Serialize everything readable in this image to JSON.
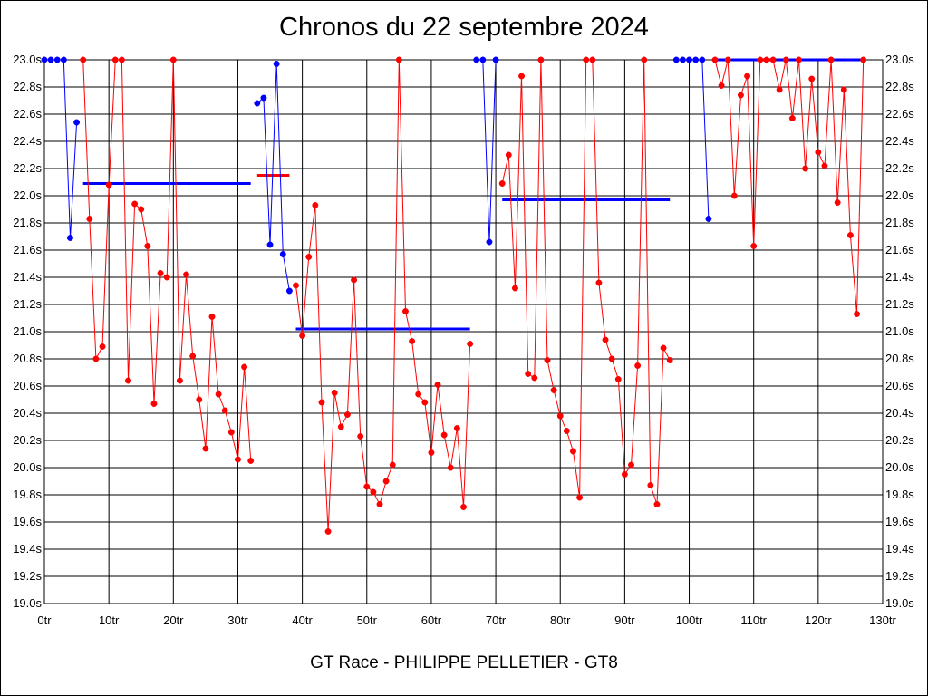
{
  "chart_data": {
    "type": "line",
    "title": "Chronos du 22 septembre 2024",
    "footer": "GT Race - PHILIPPE PELLETIER - GT8",
    "xlim": [
      0,
      130
    ],
    "ylim": [
      19.0,
      23.0
    ],
    "x_ticks": [
      0,
      10,
      20,
      30,
      40,
      50,
      60,
      70,
      80,
      90,
      100,
      110,
      120,
      130
    ],
    "x_tick_labels": [
      "0tr",
      "10tr",
      "20tr",
      "30tr",
      "40tr",
      "50tr",
      "60tr",
      "70tr",
      "80tr",
      "90tr",
      "100tr",
      "110tr",
      "120tr",
      "130tr"
    ],
    "y_ticks": [
      19.0,
      19.2,
      19.4,
      19.6,
      19.8,
      20.0,
      20.2,
      20.4,
      20.6,
      20.8,
      21.0,
      21.2,
      21.4,
      21.6,
      21.8,
      22.0,
      22.2,
      22.4,
      22.6,
      22.8,
      23.0
    ],
    "y_tick_labels": [
      "19.0s",
      "19.2s",
      "19.4s",
      "19.6s",
      "19.8s",
      "20.0s",
      "20.2s",
      "20.4s",
      "20.6s",
      "20.8s",
      "21.0s",
      "21.2s",
      "21.4s",
      "21.6s",
      "21.8s",
      "22.0s",
      "22.2s",
      "22.4s",
      "22.6s",
      "22.8s",
      "23.0s"
    ],
    "grid": true,
    "colors": {
      "blue": "#0000ff",
      "red": "#ff0000"
    },
    "segments": [
      {
        "color": "blue",
        "points": [
          [
            0,
            23.0
          ],
          [
            1,
            23.0
          ],
          [
            2,
            23.0
          ],
          [
            3,
            23.0
          ],
          [
            4,
            21.69
          ],
          [
            5,
            22.54
          ]
        ]
      },
      {
        "color": "red",
        "points": [
          [
            6,
            23.0
          ],
          [
            7,
            21.83
          ],
          [
            8,
            20.8
          ],
          [
            9,
            20.89
          ],
          [
            10,
            22.08
          ],
          [
            11,
            23.0
          ],
          [
            12,
            23.0
          ],
          [
            13,
            20.64
          ],
          [
            14,
            21.94
          ],
          [
            15,
            21.9
          ],
          [
            16,
            21.63
          ],
          [
            17,
            20.47
          ],
          [
            18,
            21.43
          ],
          [
            19,
            21.4
          ],
          [
            20,
            23.0
          ],
          [
            21,
            20.64
          ],
          [
            22,
            21.42
          ],
          [
            23,
            20.82
          ],
          [
            24,
            20.5
          ],
          [
            25,
            20.14
          ],
          [
            26,
            21.11
          ],
          [
            27,
            20.54
          ],
          [
            28,
            20.42
          ],
          [
            29,
            20.26
          ],
          [
            30,
            20.06
          ],
          [
            31,
            20.74
          ],
          [
            32,
            20.05
          ]
        ]
      },
      {
        "color": "blue",
        "points": [
          [
            33,
            22.68
          ],
          [
            34,
            22.72
          ],
          [
            35,
            21.64
          ],
          [
            36,
            22.97
          ],
          [
            37,
            21.57
          ],
          [
            38,
            21.3
          ]
        ]
      },
      {
        "color": "red",
        "points": [
          [
            39,
            21.34
          ],
          [
            40,
            20.97
          ],
          [
            41,
            21.55
          ],
          [
            42,
            21.93
          ],
          [
            43,
            20.48
          ],
          [
            44,
            19.53
          ],
          [
            45,
            20.55
          ],
          [
            46,
            20.3
          ],
          [
            47,
            20.39
          ],
          [
            48,
            21.38
          ],
          [
            49,
            20.23
          ],
          [
            50,
            19.86
          ],
          [
            51,
            19.82
          ],
          [
            52,
            19.73
          ],
          [
            53,
            19.9
          ],
          [
            54,
            20.02
          ],
          [
            55,
            23.0
          ],
          [
            56,
            21.15
          ],
          [
            57,
            20.93
          ],
          [
            58,
            20.54
          ],
          [
            59,
            20.48
          ],
          [
            60,
            20.11
          ],
          [
            61,
            20.61
          ],
          [
            62,
            20.24
          ],
          [
            63,
            20.0
          ],
          [
            64,
            20.29
          ],
          [
            65,
            19.71
          ],
          [
            66,
            20.91
          ]
        ]
      },
      {
        "color": "blue",
        "points": [
          [
            67,
            23.0
          ],
          [
            68,
            23.0
          ],
          [
            69,
            21.66
          ],
          [
            70,
            23.0
          ]
        ]
      },
      {
        "color": "red",
        "points": [
          [
            71,
            22.09
          ],
          [
            72,
            22.3
          ],
          [
            73,
            21.32
          ],
          [
            74,
            22.88
          ],
          [
            75,
            20.69
          ],
          [
            76,
            20.66
          ],
          [
            77,
            23.0
          ],
          [
            78,
            20.79
          ],
          [
            79,
            20.57
          ],
          [
            80,
            20.38
          ],
          [
            81,
            20.27
          ],
          [
            82,
            20.12
          ],
          [
            83,
            19.78
          ],
          [
            84,
            23.0
          ],
          [
            85,
            23.0
          ],
          [
            86,
            21.36
          ],
          [
            87,
            20.94
          ],
          [
            88,
            20.8
          ],
          [
            89,
            20.65
          ],
          [
            90,
            19.95
          ],
          [
            91,
            20.02
          ],
          [
            92,
            20.75
          ],
          [
            93,
            23.0
          ],
          [
            94,
            19.87
          ],
          [
            95,
            19.73
          ],
          [
            96,
            20.88
          ],
          [
            97,
            20.79
          ]
        ]
      },
      {
        "color": "blue",
        "points": [
          [
            98,
            23.0
          ],
          [
            99,
            23.0
          ],
          [
            100,
            23.0
          ],
          [
            101,
            23.0
          ],
          [
            102,
            23.0
          ],
          [
            103,
            21.83
          ]
        ]
      },
      {
        "color": "red",
        "points": [
          [
            104,
            23.0
          ],
          [
            105,
            22.81
          ],
          [
            106,
            23.0
          ],
          [
            107,
            22.0
          ],
          [
            108,
            22.74
          ],
          [
            109,
            22.88
          ],
          [
            110,
            21.63
          ],
          [
            111,
            23.0
          ],
          [
            112,
            23.0
          ],
          [
            113,
            23.0
          ],
          [
            114,
            22.78
          ],
          [
            115,
            23.0
          ],
          [
            116,
            22.57
          ],
          [
            117,
            23.0
          ],
          [
            118,
            22.2
          ],
          [
            119,
            22.86
          ],
          [
            120,
            22.32
          ],
          [
            121,
            22.22
          ],
          [
            122,
            23.0
          ],
          [
            123,
            21.95
          ],
          [
            124,
            22.78
          ],
          [
            125,
            21.71
          ],
          [
            126,
            21.13
          ],
          [
            127,
            23.0
          ]
        ]
      }
    ],
    "average_lines": [
      {
        "color": "blue",
        "x": [
          6,
          32
        ],
        "y": 22.09
      },
      {
        "color": "red",
        "x": [
          33,
          38
        ],
        "y": 22.15
      },
      {
        "color": "blue",
        "x": [
          39,
          66
        ],
        "y": 21.02
      },
      {
        "color": "blue",
        "x": [
          71,
          97
        ],
        "y": 21.97
      },
      {
        "color": "blue",
        "x": [
          104,
          127
        ],
        "y": 23.0
      }
    ]
  }
}
